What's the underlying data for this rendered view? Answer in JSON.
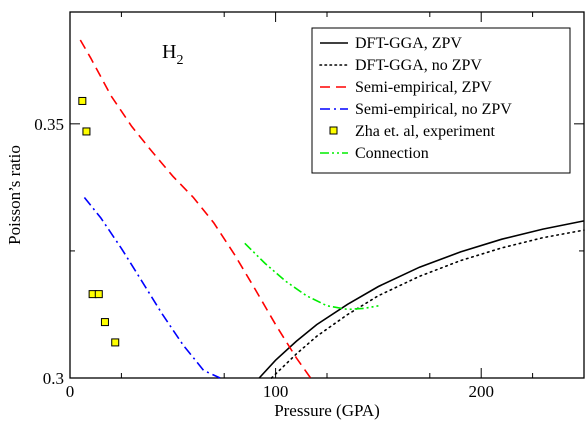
{
  "chart_data": {
    "type": "line",
    "annotation": "H",
    "annotation_sub": "2",
    "xlabel": "Pressure (GPA)",
    "ylabel": "Poisson’s ratio",
    "xlim": [
      0,
      250
    ],
    "ylim": [
      0.3,
      0.372
    ],
    "x_ticks": [
      0,
      100,
      200
    ],
    "x_tick_labels": [
      "0",
      "100",
      "200"
    ],
    "y_ticks": [
      0.3,
      0.35
    ],
    "y_tick_labels": [
      "0.3",
      "0.35"
    ],
    "grid": false,
    "legend_position": "top-right",
    "series": [
      {
        "name": "DFT-GGA, ZPV",
        "kind": "line",
        "color": "#000000",
        "dash": "solid",
        "x": [
          92,
          100,
          110,
          120,
          135,
          150,
          170,
          190,
          210,
          230,
          250
        ],
        "y": [
          0.3,
          0.3035,
          0.3072,
          0.3105,
          0.3145,
          0.318,
          0.3218,
          0.3248,
          0.3273,
          0.3293,
          0.3309
        ]
      },
      {
        "name": "DFT-GGA, no ZPV",
        "kind": "line",
        "color": "#000000",
        "dash": "dotted",
        "x": [
          98,
          110,
          120,
          135,
          150,
          170,
          190,
          210,
          230,
          250
        ],
        "y": [
          0.3,
          0.3047,
          0.3082,
          0.3125,
          0.3162,
          0.32,
          0.3231,
          0.3256,
          0.3276,
          0.3291
        ]
      },
      {
        "name": "Semi-empirical, ZPV",
        "kind": "line",
        "color": "#ff0000",
        "dash": "dashed",
        "x": [
          5,
          10,
          20,
          30,
          40,
          50,
          60,
          70,
          80,
          90,
          100,
          110,
          117
        ],
        "y": [
          0.3665,
          0.363,
          0.3555,
          0.3495,
          0.3445,
          0.3397,
          0.3355,
          0.3305,
          0.3243,
          0.3175,
          0.3105,
          0.304,
          0.3
        ]
      },
      {
        "name": "Semi-empirical, no ZPV",
        "kind": "line",
        "color": "#0000ff",
        "dash": "dashdot",
        "x": [
          7,
          15,
          25,
          35,
          45,
          55,
          65,
          73
        ],
        "y": [
          0.3355,
          0.3315,
          0.3255,
          0.319,
          0.3125,
          0.3065,
          0.3015,
          0.3
        ]
      },
      {
        "name": "Zha et. al, experiment",
        "kind": "scatter",
        "color": "#ffff00",
        "edge": "#000000",
        "x": [
          6,
          8,
          11,
          14,
          17,
          22
        ],
        "y": [
          0.3545,
          0.3485,
          0.3165,
          0.3165,
          0.311,
          0.307
        ]
      },
      {
        "name": "Connection",
        "kind": "line",
        "color": "#00ee00",
        "dash": "dashdotdot",
        "x": [
          85,
          95,
          105,
          115,
          125,
          135,
          143,
          150
        ],
        "y": [
          0.3265,
          0.3225,
          0.319,
          0.3162,
          0.3142,
          0.3135,
          0.3137,
          0.3142
        ]
      }
    ]
  }
}
